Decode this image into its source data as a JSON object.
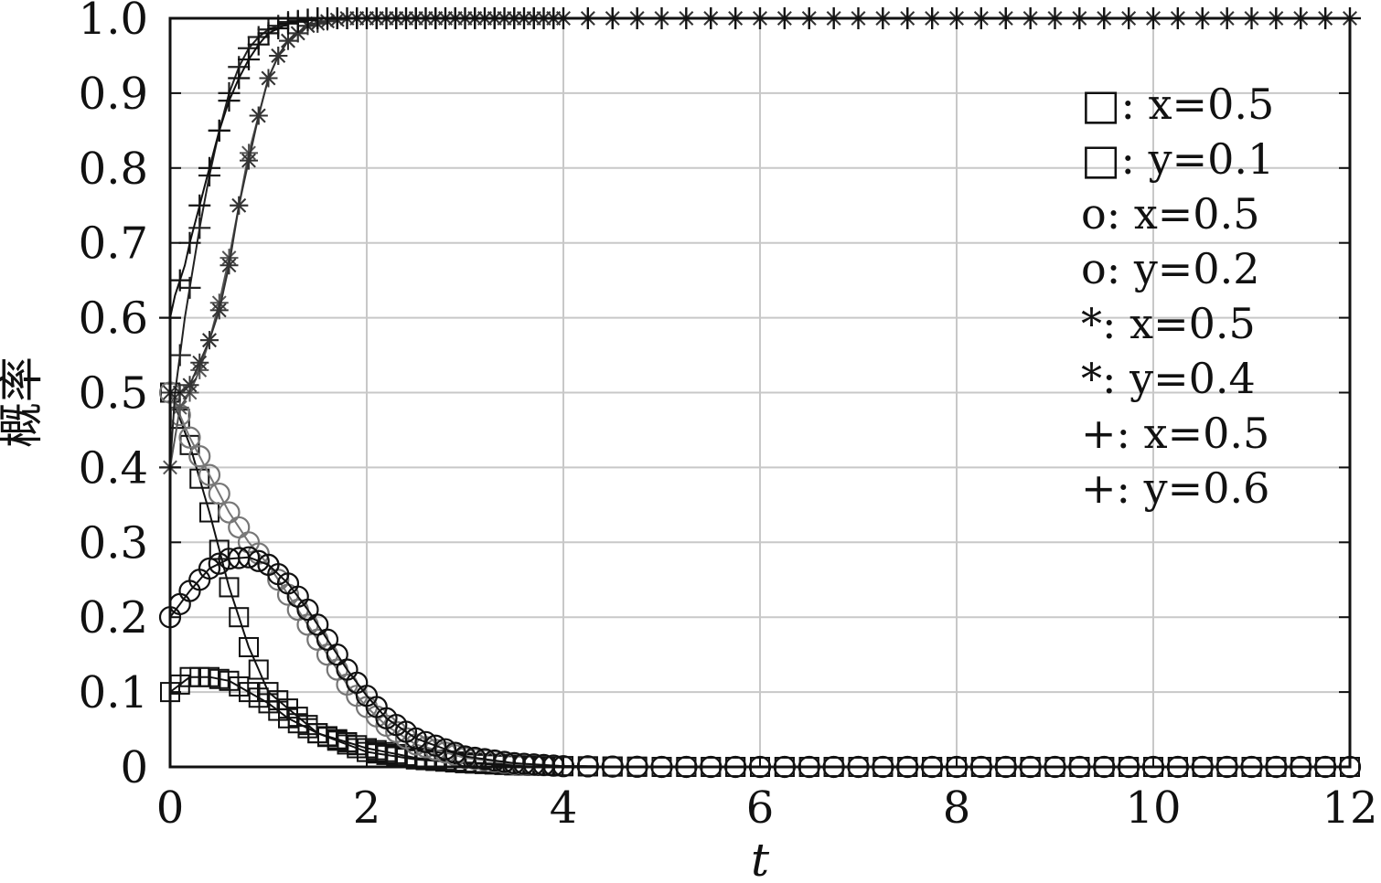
{
  "chart_data": {
    "type": "line",
    "title": "",
    "xlabel": "t",
    "ylabel": "概率",
    "xlim": [
      0,
      12
    ],
    "ylim": [
      0,
      1.0
    ],
    "xticks": [
      "0",
      "2",
      "4",
      "6",
      "8",
      "10",
      "12"
    ],
    "yticks": [
      "0",
      "0.1",
      "0.2",
      "0.3",
      "0.4",
      "0.5",
      "0.6",
      "0.7",
      "0.8",
      "0.9",
      "1.0"
    ],
    "grid": true,
    "legend_position": "top-right",
    "legend": [
      {
        "marker": "square",
        "label": "□:  x=0.5"
      },
      {
        "marker": "square",
        "label": "□:  y=0.1"
      },
      {
        "marker": "circle",
        "label": "o:  x=0.5"
      },
      {
        "marker": "circle",
        "label": "o:  y=0.2"
      },
      {
        "marker": "star",
        "label": "*:  x=0.5"
      },
      {
        "marker": "star",
        "label": "*:  y=0.4"
      },
      {
        "marker": "plus",
        "label": "+:  x=0.5"
      },
      {
        "marker": "plus",
        "label": "+:  y=0.6"
      }
    ],
    "series": [
      {
        "marker": "square",
        "color": "#111111",
        "x": [
          0,
          0.2,
          0.4,
          0.6,
          0.8,
          1.0,
          1.5,
          2.0,
          2.5,
          3.0,
          3.5,
          4.0,
          5.0,
          6.0,
          8.0,
          10.0,
          12.0
        ],
        "y": [
          0.5,
          0.43,
          0.34,
          0.24,
          0.16,
          0.1,
          0.045,
          0.02,
          0.01,
          0.005,
          0.002,
          0.001,
          0.0,
          0.0,
          0.0,
          0.0,
          0.0
        ]
      },
      {
        "marker": "square",
        "color": "#111111",
        "x": [
          0,
          0.2,
          0.4,
          0.6,
          0.8,
          1.0,
          1.2,
          1.5,
          2.0,
          2.5,
          3.0,
          3.5,
          4.0,
          5.0,
          6.0,
          8.0,
          10.0,
          12.0
        ],
        "y": [
          0.1,
          0.12,
          0.12,
          0.115,
          0.1,
          0.085,
          0.065,
          0.045,
          0.025,
          0.012,
          0.006,
          0.003,
          0.001,
          0.0,
          0.0,
          0.0,
          0.0,
          0.0
        ]
      },
      {
        "marker": "circle",
        "color": "#777777",
        "x": [
          0,
          0.2,
          0.4,
          0.6,
          0.8,
          1.0,
          1.2,
          1.4,
          1.6,
          1.8,
          2.0,
          2.2,
          2.5,
          3.0,
          3.5,
          4.0,
          5.0,
          6.0,
          8.0,
          10.0,
          12.0
        ],
        "y": [
          0.5,
          0.44,
          0.39,
          0.34,
          0.3,
          0.27,
          0.23,
          0.19,
          0.15,
          0.11,
          0.08,
          0.055,
          0.03,
          0.012,
          0.004,
          0.001,
          0.0,
          0.0,
          0.0,
          0.0,
          0.0
        ]
      },
      {
        "marker": "circle",
        "color": "#111111",
        "x": [
          0,
          0.2,
          0.4,
          0.6,
          0.8,
          1.0,
          1.2,
          1.4,
          1.6,
          1.8,
          2.0,
          2.2,
          2.5,
          3.0,
          3.5,
          4.0,
          5.0,
          6.0,
          8.0,
          10.0,
          12.0
        ],
        "y": [
          0.2,
          0.235,
          0.265,
          0.278,
          0.28,
          0.27,
          0.245,
          0.21,
          0.17,
          0.13,
          0.095,
          0.065,
          0.038,
          0.014,
          0.005,
          0.001,
          0.0,
          0.0,
          0.0,
          0.0,
          0.0
        ]
      },
      {
        "marker": "star",
        "color": "#555555",
        "x": [
          0,
          0.1,
          0.2,
          0.3,
          0.4,
          0.5,
          0.6,
          0.7,
          0.8,
          0.9,
          1.0,
          1.1,
          1.2,
          1.4,
          1.6,
          1.8,
          2.0,
          2.5,
          3.0,
          4.0,
          6.0,
          8.0,
          10.0,
          12.0
        ],
        "y": [
          0.4,
          0.48,
          0.5,
          0.53,
          0.57,
          0.62,
          0.68,
          0.75,
          0.82,
          0.87,
          0.92,
          0.95,
          0.97,
          0.99,
          0.996,
          1.0,
          1.0,
          1.0,
          1.0,
          1.0,
          1.0,
          1.0,
          1.0,
          1.0
        ]
      },
      {
        "marker": "star",
        "color": "#333333",
        "x": [
          0,
          0.1,
          0.2,
          0.3,
          0.4,
          0.5,
          0.6,
          0.7,
          0.8,
          0.9,
          1.0,
          1.1,
          1.2,
          1.4,
          1.6,
          1.8,
          2.0,
          2.5,
          3.0,
          4.0,
          6.0,
          8.0,
          10.0,
          12.0
        ],
        "y": [
          0.5,
          0.5,
          0.51,
          0.54,
          0.57,
          0.61,
          0.67,
          0.75,
          0.81,
          0.87,
          0.92,
          0.95,
          0.97,
          0.99,
          0.996,
          1.0,
          1.0,
          1.0,
          1.0,
          1.0,
          1.0,
          1.0,
          1.0,
          1.0
        ]
      },
      {
        "marker": "plus",
        "color": "#222222",
        "x": [
          0,
          0.05,
          0.1,
          0.15,
          0.2,
          0.3,
          0.4,
          0.5,
          0.6,
          0.7,
          0.8,
          0.9,
          1.0,
          1.2,
          1.5,
          2.0,
          3.0,
          4.0,
          6.0,
          8.0,
          10.0,
          12.0
        ],
        "y": [
          0.4,
          0.5,
          0.55,
          0.6,
          0.64,
          0.72,
          0.79,
          0.85,
          0.9,
          0.935,
          0.96,
          0.975,
          0.985,
          0.995,
          1.0,
          1.0,
          1.0,
          1.0,
          1.0,
          1.0,
          1.0,
          1.0
        ]
      },
      {
        "marker": "plus",
        "color": "#111111",
        "x": [
          0,
          0.05,
          0.1,
          0.15,
          0.2,
          0.3,
          0.4,
          0.5,
          0.6,
          0.7,
          0.8,
          0.9,
          1.0,
          1.2,
          1.5,
          2.0,
          3.0,
          4.0,
          6.0,
          8.0,
          10.0,
          12.0
        ],
        "y": [
          0.6,
          0.63,
          0.65,
          0.67,
          0.7,
          0.75,
          0.8,
          0.85,
          0.89,
          0.92,
          0.945,
          0.965,
          0.98,
          0.993,
          1.0,
          1.0,
          1.0,
          1.0,
          1.0,
          1.0,
          1.0,
          1.0
        ]
      }
    ]
  }
}
